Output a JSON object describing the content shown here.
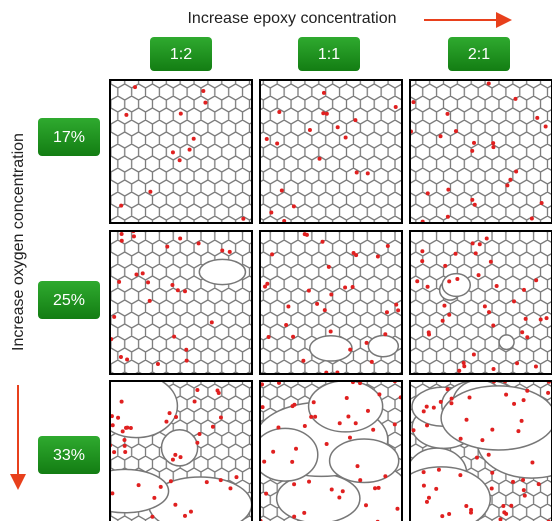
{
  "header": {
    "title": "Increase epoxy concentration"
  },
  "side_label": "Increase oxygen concentration",
  "columns": [
    "1:2",
    "1:1",
    "2:1"
  ],
  "rows": [
    "17%",
    "25%",
    "33%"
  ]
}
